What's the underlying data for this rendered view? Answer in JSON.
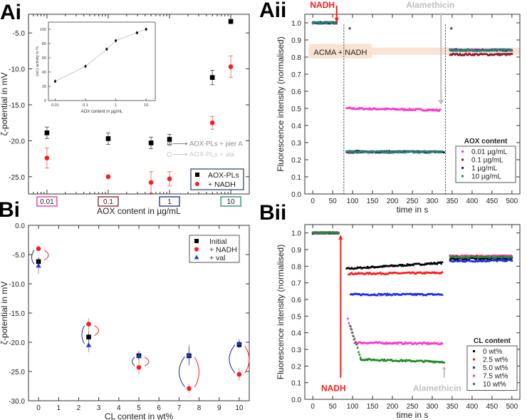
{
  "chart_data": [
    {
      "panel": "Ai",
      "type": "scatter",
      "xscale": "log",
      "xlabel": "AOX content in µg/mL",
      "ylabel": "ζ-potential in mV",
      "xlim": [
        0.005,
        20
      ],
      "ylim": [
        -27.4,
        -2.4
      ],
      "yticks": [
        -5,
        -10,
        -15,
        -20,
        -25
      ],
      "xboxes": [
        {
          "label": "0.01",
          "x": 0.01,
          "color": "#e8309a"
        },
        {
          "label": "0.1",
          "x": 0.1,
          "color": "#8b1a2b"
        },
        {
          "label": "1",
          "x": 1,
          "color": "#1a2a8b"
        },
        {
          "label": "10",
          "x": 10,
          "color": "#1f8a6a"
        }
      ],
      "legend": "bottom-right",
      "series": [
        {
          "name": "AOX-PLs",
          "marker": "square",
          "color": "#000000",
          "x": [
            0.01,
            0.1,
            0.5,
            1,
            5,
            10
          ],
          "y": [
            -18.9,
            -19.7,
            -20.3,
            -19.8,
            -11.2,
            -3.4
          ],
          "err": [
            0.8,
            0.8,
            0.8,
            0.7,
            1.0,
            0.3
          ]
        },
        {
          "name": "+ NADH",
          "marker": "circle",
          "color": "#ff1a1a",
          "x": [
            0.01,
            0.1,
            0.5,
            1,
            5,
            10
          ],
          "y": [
            -22.4,
            -25.0,
            -25.8,
            -25.3,
            -17.5,
            -9.7
          ],
          "err": [
            1.4,
            0.2,
            1.5,
            1.0,
            0.9,
            1.5
          ]
        }
      ],
      "annotations": [
        {
          "text": "AOX-PLs + pier A",
          "x": 1,
          "y": -20.4,
          "color": "#888888"
        },
        {
          "text": "AOX-PLs + ala",
          "x": 1,
          "y": -21.9,
          "color": "#c8c8c8"
        }
      ],
      "inset": {
        "type": "line",
        "xscale": "log",
        "xlabel": "AOX content in µg/mL",
        "ylabel": "(rel.) activity in %",
        "xlim": [
          0.006,
          20
        ],
        "ylim": [
          0,
          110
        ],
        "yticks": [
          0,
          20,
          40,
          60,
          80,
          100
        ],
        "xticks": [
          {
            "v": 0.01,
            "label": "0.01"
          },
          {
            "v": 0.1,
            "label": "0.1"
          },
          {
            "v": 1,
            "label": "1"
          },
          {
            "v": 10,
            "label": "10"
          }
        ],
        "x": [
          0.01,
          0.1,
          0.5,
          1,
          5,
          10
        ],
        "y": [
          27,
          48,
          72,
          84,
          95,
          100
        ]
      }
    },
    {
      "panel": "Aii",
      "type": "scatter",
      "xlabel": "time in s",
      "ylabel": "Fluorescence intensity (normalised)",
      "xlim": [
        -20,
        520
      ],
      "ylim": [
        0,
        1.05
      ],
      "xticks": [
        0,
        50,
        100,
        150,
        200,
        250,
        300,
        350,
        400,
        450,
        500
      ],
      "yticks": [
        0.0,
        0.1,
        0.2,
        0.3,
        0.4,
        0.5,
        0.6,
        0.7,
        0.8,
        0.9,
        1.0
      ],
      "legend_title": "AOX content",
      "legend": "bottom-right",
      "markers": {
        "NADH": {
          "text": "NADH",
          "x": 60,
          "color": "#ff1a1a"
        },
        "Alamethicin": {
          "text": "Alamethicin",
          "x": 322,
          "color": "#c0c0c0"
        }
      },
      "dashed_lines": [
        78,
        333
      ],
      "asterisk": "*",
      "band": {
        "text": "ACMA + NADH",
        "y": 0.83
      },
      "series": [
        {
          "name": "0.01 µg/mL",
          "color": "#ff33cc",
          "segments": [
            [
              0,
              60,
              1.0,
              1.0
            ],
            [
              85,
              320,
              0.5,
              0.49
            ],
            [
              345,
              500,
              0.84,
              0.84
            ]
          ]
        },
        {
          "name": "0.1 µg/mL",
          "color": "#8b1a2b",
          "segments": [
            [
              0,
              60,
              1.0,
              1.0
            ],
            [
              85,
              325,
              0.245,
              0.245
            ],
            [
              345,
              500,
              0.815,
              0.815
            ]
          ]
        },
        {
          "name": "1 µg/mL",
          "color": "#1a1a8b",
          "segments": [
            [
              0,
              60,
              1.0,
              1.0
            ],
            [
              85,
              330,
              0.248,
              0.245
            ],
            [
              345,
              500,
              0.842,
              0.84
            ]
          ]
        },
        {
          "name": "10 µg/mL",
          "color": "#1f8a6a",
          "segments": [
            [
              0,
              60,
              1.0,
              1.0
            ],
            [
              85,
              325,
              0.246,
              0.246
            ],
            [
              345,
              500,
              0.84,
              0.84
            ]
          ]
        }
      ]
    },
    {
      "panel": "Bi",
      "type": "scatter",
      "xlabel": "CL content in wt%",
      "ylabel": "ζ-potential in mV",
      "xlim": [
        -0.5,
        10.5
      ],
      "ylim": [
        -30,
        0
      ],
      "xticks": [
        0,
        1,
        2,
        3,
        4,
        5,
        6,
        7,
        8,
        9,
        10
      ],
      "yticks": [
        0,
        -5,
        -10,
        -15,
        -20,
        -25,
        -30
      ],
      "legend": "top-right",
      "series": [
        {
          "name": "Initial",
          "marker": "square",
          "color": "#000000",
          "x": [
            0,
            2.5,
            5,
            7.5,
            10
          ],
          "y": [
            -6.2,
            -19.1,
            -22.3,
            -22.3,
            -20.4
          ],
          "err": [
            0.7,
            1.1,
            0.8,
            1.5,
            0.6
          ]
        },
        {
          "name": "+ NADH",
          "marker": "circle",
          "color": "#ff1a1a",
          "x": [
            0,
            2.5,
            5,
            7.5,
            10
          ],
          "y": [
            -4.0,
            -16.9,
            -24.3,
            -27.9,
            -25.5
          ],
          "err": [
            0.2,
            1.0,
            1.2,
            0.8,
            1.1
          ]
        },
        {
          "name": "+ val",
          "marker": "triangle",
          "color": "#1a3acc",
          "x": [
            0,
            2.5,
            5,
            7.5,
            10
          ],
          "y": [
            -6.9,
            -20.5,
            -22.3,
            -22.2,
            -20.2
          ],
          "err": [
            1.4,
            1.2,
            0.7,
            1.8,
            0.8
          ]
        }
      ]
    },
    {
      "panel": "Bii",
      "type": "scatter",
      "xlabel": "time in s",
      "ylabel": "Fluorescence intensity (normalised)",
      "xlim": [
        -20,
        520
      ],
      "ylim": [
        0,
        1.05
      ],
      "xticks": [
        0,
        50,
        100,
        150,
        200,
        250,
        300,
        350,
        400,
        450,
        500
      ],
      "yticks": [
        0.0,
        0.1,
        0.2,
        0.3,
        0.4,
        0.5,
        0.6,
        0.7,
        0.8,
        0.9,
        1.0
      ],
      "legend_title": "CL content",
      "legend": "bottom-right",
      "markers": {
        "NADH": {
          "text": "NADH",
          "x": 70,
          "color": "#ff1a1a"
        },
        "Alamethicin": {
          "text": "Alamethicin",
          "x": 330,
          "color": "#c0c0c0"
        }
      },
      "series": [
        {
          "name": "0 wt%",
          "color": "#000000",
          "segments": [
            [
              0,
              65,
              1.0,
              1.0
            ],
            [
              85,
              325,
              0.785,
              0.82
            ],
            [
              345,
              500,
              0.845,
              0.845
            ]
          ]
        },
        {
          "name": "2.5 wt%",
          "color": "#ff1a1a",
          "segments": [
            [
              0,
              65,
              1.0,
              1.0
            ],
            [
              90,
              325,
              0.755,
              0.76
            ],
            [
              345,
              500,
              0.86,
              0.86
            ]
          ]
        },
        {
          "name": "5.0 wt%",
          "color": "#1a2aee",
          "segments": [
            [
              0,
              65,
              1.0,
              1.0
            ],
            [
              95,
              325,
              0.63,
              0.63
            ],
            [
              345,
              500,
              0.83,
              0.835
            ]
          ]
        },
        {
          "name": "7.5 wt%",
          "color": "#ff33cc",
          "segments": [
            [
              0,
              65,
              1.0,
              1.0
            ],
            [
              88,
              105,
              0.48,
              0.345
            ],
            [
              105,
              325,
              0.34,
              0.335
            ],
            [
              345,
              500,
              0.86,
              0.86
            ]
          ]
        },
        {
          "name": "10 wt%",
          "color": "#1f8a2a",
          "segments": [
            [
              0,
              65,
              1.0,
              1.0
            ],
            [
              95,
              120,
              0.44,
              0.25
            ],
            [
              120,
              330,
              0.24,
              0.225
            ],
            [
              345,
              500,
              0.855,
              0.855
            ]
          ]
        }
      ]
    }
  ],
  "panels": {
    "Ai": "Ai",
    "Aii": "Aii",
    "Bi": "Bi",
    "Bii": "Bii"
  }
}
